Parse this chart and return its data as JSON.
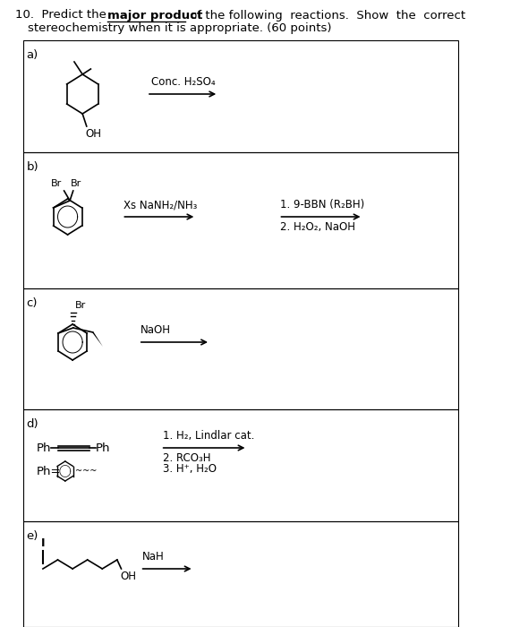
{
  "bg_color": "#ffffff",
  "title_line1": "10.  Predict the ",
  "title_bold": "major product",
  "title_line1_rest": " of the following  reactions.  Show  the  correct",
  "title_line2": "stereochemistry when it is appropriate. (60 points)",
  "sections": [
    "a)",
    "b)",
    "c)",
    "d)",
    "e)"
  ],
  "reagent_a": "Conc. H₂SO₄",
  "reagent_b1": "Xs NaNH₂/NH₃",
  "reagent_b2_1": "1. 9-BBN (R₂BH)",
  "reagent_b2_2": "2. H₂O₂, NaOH",
  "reagent_c": "NaOH",
  "reagent_d1": "1. H₂, Lindlar cat.",
  "reagent_d2": "2. RCO₃H",
  "reagent_d3": "3. H⁺, H₂O",
  "reagent_e": "NaH",
  "text_color": "#000000",
  "font_size": 9
}
